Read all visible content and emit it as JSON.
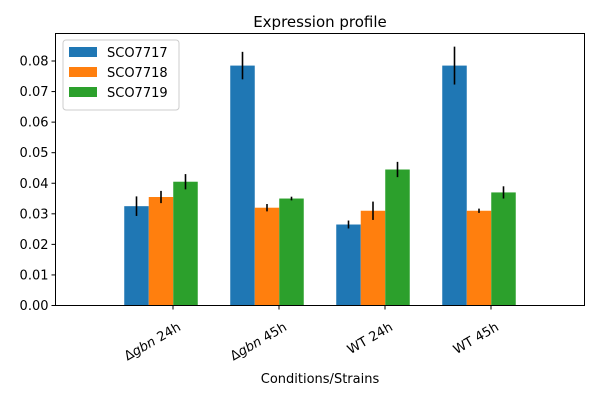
{
  "chart_data": {
    "type": "bar",
    "title": "Expression profile",
    "xlabel": "Conditions/Strains",
    "ylabel": "",
    "ylim": [
      0,
      0.089
    ],
    "yticks": [
      0.0,
      0.01,
      0.02,
      0.03,
      0.04,
      0.05,
      0.06,
      0.07,
      0.08
    ],
    "ytick_labels": [
      "0.00",
      "0.01",
      "0.02",
      "0.03",
      "0.04",
      "0.05",
      "0.06",
      "0.07",
      "0.08"
    ],
    "categories": [
      {
        "prefix": "Δ",
        "italic": "gbn",
        "suffix": " 24h"
      },
      {
        "prefix": "Δ",
        "italic": "gbn",
        "suffix": " 45h"
      },
      {
        "prefix": "",
        "italic": "",
        "suffix": "WT 24h"
      },
      {
        "prefix": "",
        "italic": "",
        "suffix": "WT 45h"
      }
    ],
    "series": [
      {
        "name": "SCO7717",
        "color": "#1f77b4",
        "values": [
          0.0325,
          0.0785,
          0.0265,
          0.0785
        ],
        "errors": [
          0.0032,
          0.0045,
          0.0013,
          0.0062
        ]
      },
      {
        "name": "SCO7718",
        "color": "#ff7f0e",
        "values": [
          0.0355,
          0.032,
          0.031,
          0.031
        ],
        "errors": [
          0.002,
          0.0012,
          0.003,
          0.0007
        ]
      },
      {
        "name": "SCO7719",
        "color": "#2ca02c",
        "values": [
          0.0405,
          0.035,
          0.0445,
          0.037
        ],
        "errors": [
          0.0025,
          0.0006,
          0.0025,
          0.002
        ]
      }
    ],
    "grid": false,
    "legend_position": "top-left"
  }
}
